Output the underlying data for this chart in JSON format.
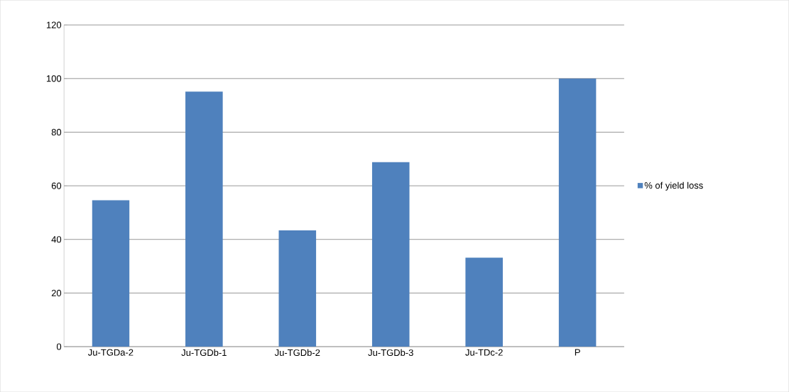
{
  "chart_data": {
    "type": "bar",
    "categories": [
      "Ju-TGDa-2",
      "Ju-TGDb-1",
      "Ju-TGDb-2",
      "Ju-TGDb-3",
      "Ju-TDc-2",
      "P"
    ],
    "series": [
      {
        "name": "% of yield loss",
        "color": "#4f81bd",
        "values": [
          54.6,
          95.1,
          43.4,
          68.8,
          33.2,
          100
        ]
      }
    ],
    "ylim": [
      0,
      120
    ],
    "yticks": [
      0,
      20,
      40,
      60,
      80,
      100,
      120
    ],
    "grid": "y",
    "legend": "right"
  }
}
